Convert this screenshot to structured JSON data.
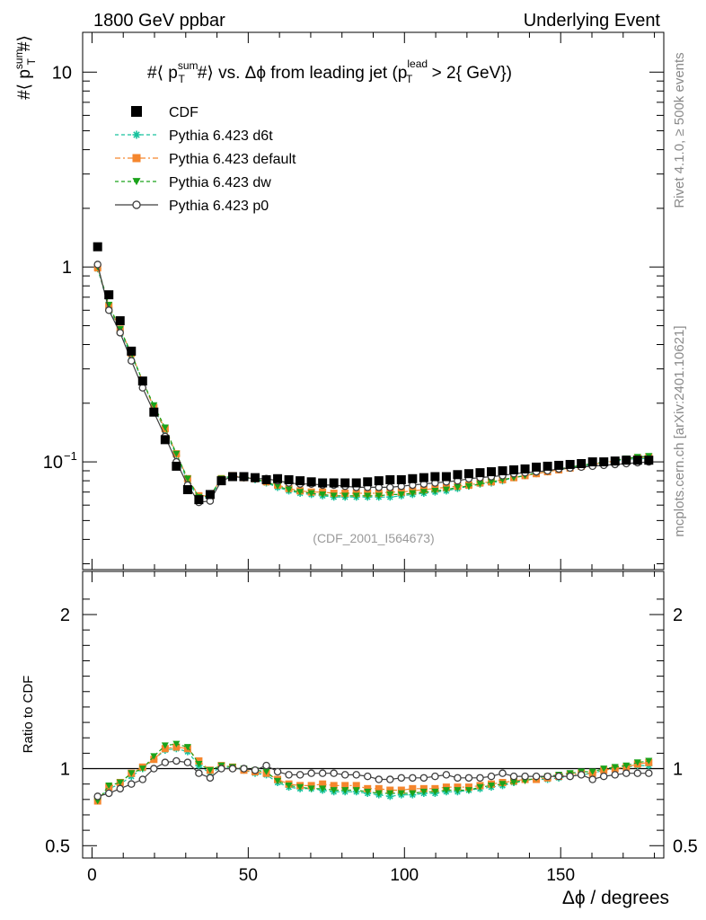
{
  "header": {
    "left": "1800 GeV ppbar",
    "right": "Underlying Event"
  },
  "side_labels": {
    "rivet": "Rivet 4.1.0, ≥ 500k events",
    "mcplots": "mcplots.cern.ch [arXiv:2401.10621]"
  },
  "chart_data": [
    {
      "type": "scatter",
      "title": "#⟨ p_T^sum #⟩ vs. Δϕ from leading jet  (p_T^lead > 2{ GeV})",
      "title_parts": {
        "a": "#⟨ p",
        "sum": "sum",
        "T1": "T",
        "b": "#⟩ vs. Δϕ from leading jet  (p",
        "lead": "lead",
        "T2": "T",
        "c": " > 2{ GeV})"
      },
      "ylabel": {
        "a": "#⟨ p",
        "sup": "sum",
        "sub": "T",
        "b": "#⟩"
      },
      "yscale": "log",
      "ylim": [
        0.028,
        16
      ],
      "xlim": [
        -3,
        183
      ],
      "yticks": [
        {
          "value": 10,
          "label": "10"
        },
        {
          "value": 1,
          "label": "1"
        },
        {
          "value": 0.1,
          "label": "10",
          "exp": "−1"
        }
      ],
      "watermark": "(CDF_2001_I564673)",
      "legend": [
        "CDF",
        "Pythia 6.423 d6t",
        "Pythia 6.423 default",
        "Pythia 6.423 dw",
        "Pythia 6.423 p0"
      ],
      "legend_position": "top-left",
      "x": [
        1.8,
        5.4,
        9,
        12.6,
        16.2,
        19.8,
        23.4,
        27,
        30.6,
        34.2,
        37.8,
        41.4,
        45,
        48.6,
        52.2,
        55.8,
        59.4,
        63,
        66.6,
        70.2,
        73.8,
        77.4,
        81,
        84.6,
        88.2,
        91.8,
        95.4,
        99,
        102.6,
        106.2,
        109.8,
        113.4,
        117,
        120.6,
        124.2,
        127.8,
        131.4,
        135,
        138.6,
        142.2,
        145.8,
        149.4,
        153,
        156.6,
        160.2,
        163.8,
        167.4,
        171,
        174.6,
        178.2
      ],
      "series": [
        {
          "name": "CDF",
          "color": "#000000",
          "marker": "square",
          "values": [
            1.27,
            0.72,
            0.53,
            0.37,
            0.26,
            0.18,
            0.13,
            0.095,
            0.072,
            0.064,
            0.068,
            0.08,
            0.084,
            0.084,
            0.083,
            0.081,
            0.082,
            0.081,
            0.08,
            0.079,
            0.078,
            0.078,
            0.078,
            0.078,
            0.079,
            0.08,
            0.081,
            0.081,
            0.082,
            0.083,
            0.084,
            0.084,
            0.086,
            0.087,
            0.088,
            0.089,
            0.09,
            0.091,
            0.092,
            0.094,
            0.095,
            0.096,
            0.097,
            0.098,
            0.1,
            0.1,
            0.101,
            0.102,
            0.102,
            0.102
          ]
        },
        {
          "name": "Pythia 6.423 d6t",
          "color": "#17c29d",
          "marker": "star",
          "values": [
            0.98,
            0.62,
            0.47,
            0.35,
            0.26,
            0.19,
            0.145,
            0.108,
            0.08,
            0.065,
            0.066,
            0.081,
            0.084,
            0.083,
            0.081,
            0.078,
            0.074,
            0.071,
            0.069,
            0.068,
            0.067,
            0.066,
            0.066,
            0.066,
            0.066,
            0.066,
            0.066,
            0.067,
            0.068,
            0.069,
            0.07,
            0.071,
            0.073,
            0.075,
            0.077,
            0.078,
            0.08,
            0.083,
            0.085,
            0.087,
            0.089,
            0.091,
            0.093,
            0.095,
            0.097,
            0.099,
            0.101,
            0.103,
            0.104,
            0.104
          ]
        },
        {
          "name": "Pythia 6.423 default",
          "color": "#f5862d",
          "marker": "square",
          "values": [
            0.99,
            0.63,
            0.48,
            0.36,
            0.26,
            0.19,
            0.148,
            0.11,
            0.082,
            0.067,
            0.067,
            0.082,
            0.085,
            0.083,
            0.082,
            0.079,
            0.076,
            0.073,
            0.071,
            0.07,
            0.07,
            0.069,
            0.069,
            0.069,
            0.069,
            0.069,
            0.07,
            0.07,
            0.071,
            0.072,
            0.073,
            0.074,
            0.075,
            0.076,
            0.078,
            0.079,
            0.081,
            0.083,
            0.085,
            0.087,
            0.089,
            0.091,
            0.093,
            0.095,
            0.097,
            0.099,
            0.101,
            0.103,
            0.105,
            0.106
          ]
        },
        {
          "name": "Pythia 6.423 dw",
          "color": "#1aa31a",
          "marker": "triangle-down",
          "values": [
            1.0,
            0.64,
            0.48,
            0.36,
            0.26,
            0.195,
            0.15,
            0.11,
            0.082,
            0.066,
            0.067,
            0.082,
            0.085,
            0.084,
            0.082,
            0.079,
            0.075,
            0.072,
            0.07,
            0.069,
            0.068,
            0.067,
            0.067,
            0.067,
            0.067,
            0.067,
            0.068,
            0.068,
            0.069,
            0.07,
            0.071,
            0.072,
            0.074,
            0.075,
            0.077,
            0.079,
            0.081,
            0.083,
            0.085,
            0.088,
            0.09,
            0.092,
            0.094,
            0.096,
            0.098,
            0.1,
            0.102,
            0.104,
            0.106,
            0.107
          ]
        },
        {
          "name": "Pythia 6.423 p0",
          "color": "#3f3f3f",
          "marker": "open-circle",
          "values": [
            1.03,
            0.6,
            0.46,
            0.33,
            0.24,
            0.18,
            0.135,
            0.1,
            0.076,
            0.062,
            0.063,
            0.08,
            0.084,
            0.083,
            0.082,
            0.082,
            0.08,
            0.078,
            0.077,
            0.077,
            0.076,
            0.076,
            0.075,
            0.074,
            0.074,
            0.074,
            0.074,
            0.075,
            0.076,
            0.077,
            0.078,
            0.079,
            0.08,
            0.082,
            0.083,
            0.084,
            0.085,
            0.087,
            0.088,
            0.089,
            0.09,
            0.092,
            0.093,
            0.094,
            0.095,
            0.096,
            0.097,
            0.098,
            0.099,
            0.1
          ]
        }
      ]
    },
    {
      "type": "scatter",
      "title": "",
      "ylabel": "Ratio to CDF",
      "xlabel": "Δϕ / degrees",
      "yscale": "linear",
      "ylim": [
        0.42,
        2.28
      ],
      "xlim": [
        -3,
        183
      ],
      "reference_line": 1,
      "yticks_left": [
        "2",
        "1",
        "0.5"
      ],
      "yticks_right": [
        "1",
        "0.5"
      ],
      "ytick_values": [
        2,
        1,
        0.5
      ],
      "ytick_values_right": [
        2,
        1,
        0.5
      ],
      "ytick_labels_right": [
        "2",
        "1",
        "0.5"
      ],
      "xticks": [
        0,
        50,
        100,
        150
      ],
      "xtick_labels": [
        "0",
        "50",
        "100",
        "150"
      ],
      "series": [
        {
          "name": "Pythia 6.423 d6t",
          "color": "#17c29d",
          "marker": "star",
          "values": [
            0.8,
            0.87,
            0.9,
            0.95,
            1.0,
            1.06,
            1.12,
            1.13,
            1.11,
            1.02,
            0.97,
            1.01,
            1.0,
            0.99,
            0.97,
            0.96,
            0.91,
            0.88,
            0.87,
            0.87,
            0.86,
            0.85,
            0.85,
            0.85,
            0.84,
            0.83,
            0.82,
            0.83,
            0.83,
            0.84,
            0.84,
            0.85,
            0.85,
            0.86,
            0.87,
            0.88,
            0.89,
            0.91,
            0.93,
            0.93,
            0.93,
            0.94,
            0.95,
            0.96,
            0.97,
            0.99,
            1.0,
            1.01,
            1.02,
            1.02
          ]
        },
        {
          "name": "Pythia 6.423 default",
          "color": "#f5862d",
          "marker": "square",
          "values": [
            0.79,
            0.88,
            0.91,
            0.97,
            1.01,
            1.06,
            1.13,
            1.14,
            1.13,
            1.05,
            0.99,
            1.02,
            1.01,
            0.99,
            0.98,
            0.97,
            0.93,
            0.9,
            0.89,
            0.89,
            0.9,
            0.89,
            0.89,
            0.89,
            0.87,
            0.87,
            0.86,
            0.86,
            0.87,
            0.87,
            0.87,
            0.88,
            0.88,
            0.88,
            0.89,
            0.9,
            0.91,
            0.92,
            0.93,
            0.93,
            0.94,
            0.95,
            0.96,
            0.97,
            0.97,
            0.99,
            1.0,
            1.01,
            1.03,
            1.04
          ]
        },
        {
          "name": "Pythia 6.423 dw",
          "color": "#1aa31a",
          "marker": "triangle-down",
          "values": [
            0.79,
            0.89,
            0.91,
            0.97,
            1.0,
            1.08,
            1.15,
            1.16,
            1.14,
            1.03,
            0.99,
            1.02,
            1.01,
            1.0,
            0.99,
            0.98,
            0.92,
            0.89,
            0.88,
            0.87,
            0.87,
            0.86,
            0.86,
            0.86,
            0.85,
            0.84,
            0.84,
            0.84,
            0.84,
            0.85,
            0.85,
            0.86,
            0.86,
            0.86,
            0.88,
            0.89,
            0.9,
            0.91,
            0.92,
            0.94,
            0.95,
            0.96,
            0.97,
            0.98,
            0.98,
            1.0,
            1.01,
            1.02,
            1.04,
            1.05
          ]
        },
        {
          "name": "Pythia 6.423 p0",
          "color": "#3f3f3f",
          "marker": "open-circle",
          "values": [
            0.82,
            0.84,
            0.87,
            0.9,
            0.93,
            1.0,
            1.04,
            1.05,
            1.04,
            0.97,
            0.94,
            1.0,
            1.0,
            1.0,
            0.99,
            1.02,
            0.98,
            0.96,
            0.96,
            0.97,
            0.97,
            0.97,
            0.96,
            0.96,
            0.95,
            0.93,
            0.93,
            0.94,
            0.94,
            0.94,
            0.95,
            0.96,
            0.94,
            0.94,
            0.94,
            0.95,
            0.97,
            0.95,
            0.95,
            0.95,
            0.95,
            0.95,
            0.95,
            0.96,
            0.93,
            0.95,
            0.96,
            0.97,
            0.97,
            0.97
          ]
        }
      ]
    }
  ]
}
